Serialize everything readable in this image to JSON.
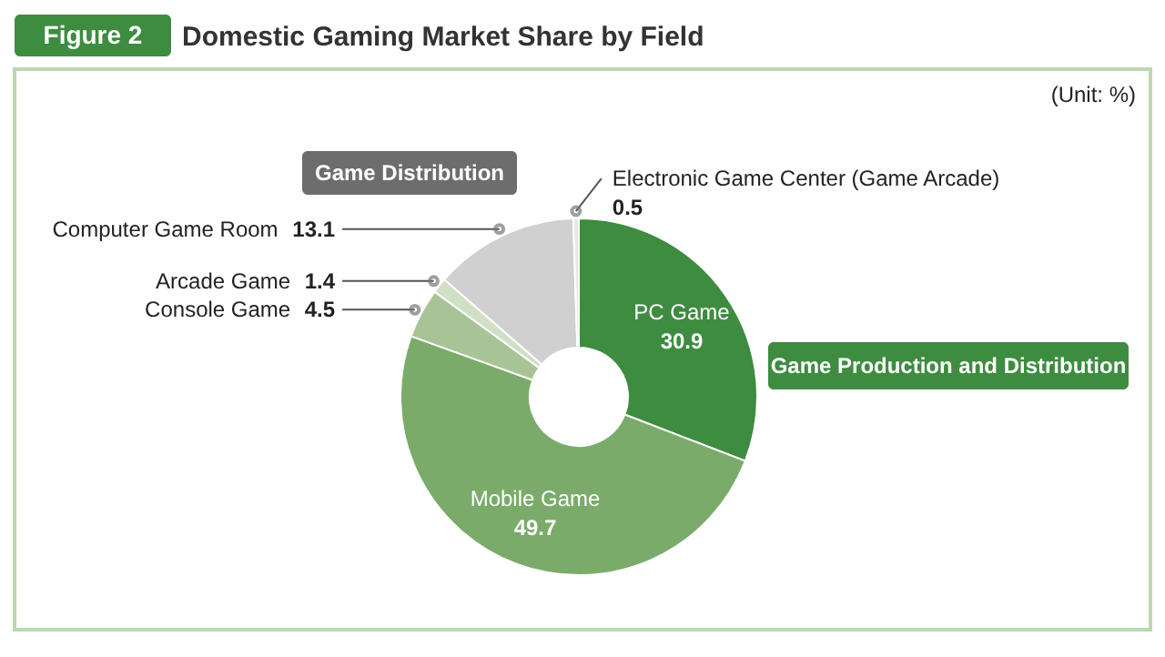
{
  "chart_data": {
    "type": "donut",
    "title": "Domestic Gaming Market Share by Field",
    "categories": [
      "PC Game",
      "Mobile Game",
      "Console Game",
      "Arcade Game",
      "Computer Game Room",
      "Electronic Game Center (Game Arcade)"
    ],
    "values": [
      30.9,
      49.7,
      4.5,
      1.4,
      13.1,
      0.5
    ],
    "colors": [
      "#3d8c40",
      "#7aab6a",
      "#a8c496",
      "#cfe0c5",
      "#d0d0d0",
      "#e8e8e8"
    ],
    "annotations": [
      "Figure 2",
      "(Unit: %)",
      "Game Distribution",
      "Game Production and Distribution"
    ],
    "data_labels": true
  }
}
